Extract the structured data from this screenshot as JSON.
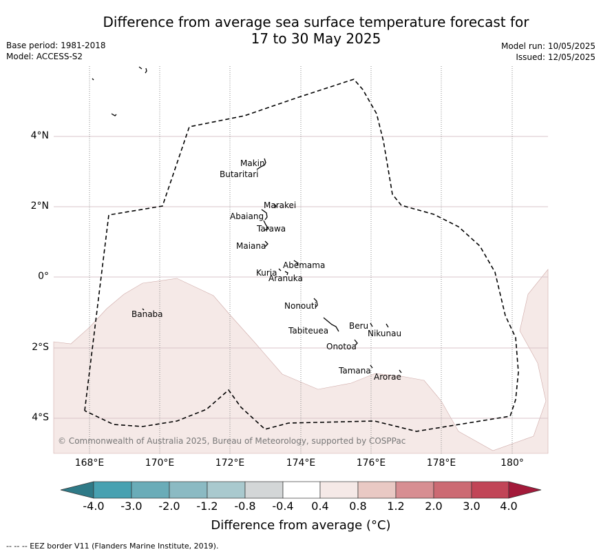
{
  "title_line1": "Difference from average sea surface temperature forecast for",
  "title_line2": "17 to 30 May 2025",
  "base_period": "Base period: 1981-2018",
  "model": "Model: ACCESS-S2",
  "model_run": "Model run: 10/05/2025",
  "issued": "Issued: 12/05/2025",
  "copyright": "© Commonwealth of Australia 2025, Bureau of Meteorology, supported by COSPPac",
  "lat_labels": [
    "4°N",
    "2°N",
    "0°",
    "2°S",
    "4°S"
  ],
  "lon_labels": [
    "168°E",
    "170°E",
    "172°E",
    "174°E",
    "176°E",
    "178°E",
    "180°"
  ],
  "place_labels": {
    "makin": "Makin",
    "butaritari": "Butaritari",
    "marakei": "Marakei",
    "abaiang": "Abaiang",
    "tarawa": "Tarawa",
    "maiana": "Maiana",
    "abemama": "Abemama",
    "kuria": "Kuria",
    "aranuka": "Aranuka",
    "nonouti": "Nonouti",
    "banaba": "Banaba",
    "beru": "Beru",
    "nikunau": "Nikunau",
    "tabiteuea": "Tabiteuea",
    "onotoa": "Onotoa",
    "tamana": "Tamana",
    "arorae": "Arorae"
  },
  "colorbar": {
    "ticks": [
      "-4.0",
      "-3.0",
      "-2.0",
      "-1.2",
      "-0.8",
      "-0.4",
      "0.4",
      "0.8",
      "1.2",
      "2.0",
      "3.0",
      "4.0"
    ],
    "colors": {
      "below_min": "#2f7a87",
      "c1": "#47a1b1",
      "c2": "#6aacb8",
      "c3": "#8bbac3",
      "c4": "#a9c9ce",
      "c5": "#d3d6d7",
      "c6": "#ffffff",
      "c7": "#f5e9e7",
      "c8": "#e9c9c4",
      "c9": "#d78e92",
      "c10": "#cc6a73",
      "c11": "#c14557",
      "above_max": "#a31a3a"
    },
    "title": "Difference from average (°C)"
  },
  "anomaly_fill_color": "#f5e9e7",
  "footnote": "--  --  -- EEZ border V11 (Flanders Marine Institute, 2019)."
}
